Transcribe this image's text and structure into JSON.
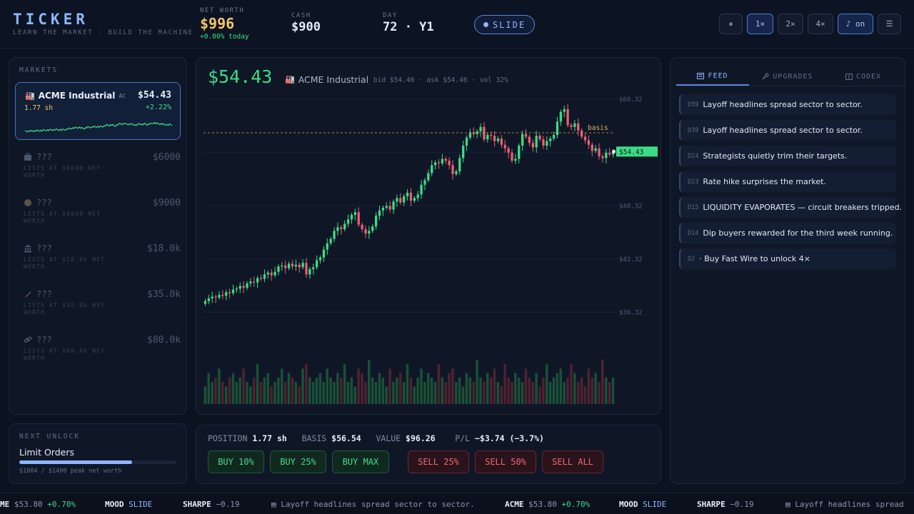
{
  "brand": {
    "title": "TICKER",
    "tagline": "LEARN THE MARKET · BUILD THE MACHINE"
  },
  "stats": {
    "net_worth": {
      "label": "NET WORTH",
      "value": "$996",
      "change": "+0.00% today"
    },
    "cash": {
      "label": "CASH",
      "value": "$900"
    },
    "day": {
      "label": "DAY",
      "value": "72 · Y1"
    }
  },
  "mood": {
    "label": "SLIDE"
  },
  "controls": {
    "pause": "⏸",
    "speed_1": "1×",
    "speed_2": "2×",
    "speed_4": "4×",
    "sound": "♪ on",
    "menu": "☰"
  },
  "markets": {
    "label": "MARKETS",
    "active": {
      "icon": "🏭",
      "name": "ACME Industrial",
      "ticker": "AC",
      "price": "$54.43",
      "shares": "1.77 sh",
      "change": "+2.22%"
    },
    "locked": [
      {
        "icon": "briefcase-icon",
        "name": "???",
        "price": "$6000",
        "desc": "LISTS AT $6000 NET WORTH"
      },
      {
        "icon": "coin-icon",
        "name": "???",
        "price": "$9000",
        "desc": "LISTS AT $9000 NET WORTH"
      },
      {
        "icon": "bank-icon",
        "name": "???",
        "price": "$18.0k",
        "desc": "LISTS AT $18.0k NET WORTH"
      },
      {
        "icon": "rocket-icon",
        "name": "???",
        "price": "$35.0k",
        "desc": "LISTS AT $35.0k NET WORTH"
      },
      {
        "icon": "link-icon",
        "name": "???",
        "price": "$80.0k",
        "desc": "LISTS AT $80.0k NET WORTH"
      }
    ]
  },
  "chart_header": {
    "price": "$54.43",
    "icon": "🏭",
    "name": "ACME Industrial",
    "meta": "bid $54.40 · ask $54.46 · vol 32%"
  },
  "chart_data": {
    "type": "candlestick",
    "y_ticks": [
      "$60.32",
      "$48.32",
      "$42.32",
      "$36.32"
    ],
    "basis_label": "basis",
    "basis_value": 56.54,
    "last_price_label": "$54.43",
    "last_price": 54.43,
    "closes": [
      37.6,
      37.9,
      38.1,
      38.0,
      38.3,
      38.2,
      38.6,
      38.5,
      38.9,
      39.0,
      39.3,
      39.1,
      39.6,
      39.8,
      39.7,
      40.2,
      40.1,
      40.6,
      40.8,
      40.5,
      40.9,
      41.5,
      41.6,
      41.3,
      41.8,
      41.5,
      41.7,
      41.4,
      41.9,
      40.6,
      41.2,
      41.4,
      42.2,
      42.5,
      43.4,
      44.1,
      44.6,
      45.5,
      45.9,
      45.7,
      46.3,
      46.8,
      47.3,
      47.6,
      46.2,
      45.7,
      45.2,
      45.5,
      46.0,
      47.2,
      47.8,
      48.1,
      48.3,
      47.9,
      48.8,
      49.2,
      48.7,
      49.4,
      49.8,
      48.9,
      49.2,
      49.6,
      50.7,
      51.2,
      52.0,
      52.9,
      53.2,
      53.1,
      53.6,
      53.4,
      52.9,
      51.9,
      52.2,
      53.7,
      55.1,
      56.0,
      56.6,
      56.4,
      56.7,
      57.2,
      55.8,
      56.3,
      56.2,
      55.6,
      55.9,
      55.2,
      54.8,
      54.3,
      53.4,
      53.6,
      55.1,
      56.4,
      56.1,
      55.4,
      54.9,
      56.2,
      55.8,
      55.1,
      55.6,
      55.9,
      56.3,
      57.8,
      58.9,
      59.2,
      57.4,
      57.2,
      57.6,
      56.8,
      56.1,
      55.7,
      55.2,
      54.5,
      54.8,
      53.9,
      53.7,
      54.3,
      54.1,
      54.43
    ],
    "volumes": [
      0.4,
      0.7,
      0.5,
      0.6,
      0.8,
      0.5,
      0.4,
      0.6,
      0.7,
      0.5,
      0.6,
      0.8,
      0.5,
      0.4,
      0.6,
      0.9,
      0.5,
      0.6,
      0.7,
      0.4,
      0.5,
      0.6,
      0.8,
      0.5,
      0.7,
      0.6,
      0.5,
      0.4,
      0.8,
      0.9,
      0.6,
      0.5,
      0.6,
      0.7,
      0.5,
      0.8,
      0.6,
      0.5,
      0.7,
      0.6,
      0.9,
      0.5,
      0.6,
      0.4,
      0.8,
      0.7,
      0.5,
      1.0,
      0.6,
      0.5,
      0.7,
      0.6,
      0.4,
      0.8,
      0.5,
      0.6,
      0.7,
      0.5,
      0.9,
      0.6,
      0.4,
      0.6,
      0.8,
      0.5,
      0.7,
      0.6,
      0.5,
      0.9,
      0.6,
      0.5,
      0.7,
      0.8,
      0.5,
      0.6,
      0.4,
      0.7,
      0.6,
      0.5,
      1.0,
      0.6,
      0.5,
      0.7,
      0.6,
      0.8,
      0.5,
      0.4,
      0.9,
      0.6,
      0.5,
      0.7,
      0.6,
      0.5,
      0.8,
      0.6,
      0.5,
      0.7,
      0.4,
      0.6,
      0.9,
      0.5,
      0.6,
      0.7,
      0.8,
      0.5,
      0.6,
      0.9,
      0.7,
      0.5,
      0.6,
      0.4,
      0.8,
      0.6,
      0.7,
      0.5,
      1.0,
      0.6,
      0.5,
      0.6
    ]
  },
  "position": {
    "pos_label": "POSITION",
    "pos_value": "1.77 sh",
    "basis_label": "BASIS",
    "basis_value": "$56.54",
    "value_label": "VALUE",
    "value_value": "$96.26",
    "pl_label": "P/L",
    "pl_value": "−$3.74 (−3.7%)",
    "buttons": {
      "buy10": "BUY 10%",
      "buy25": "BUY 25%",
      "buymax": "BUY MAX",
      "sell25": "SELL 25%",
      "sell50": "SELL 50%",
      "sellall": "SELL ALL"
    }
  },
  "unlock": {
    "label": "NEXT UNLOCK",
    "title": "Limit Orders",
    "progress": 0.72,
    "progress_text": "$1004 / $1400 peak net worth"
  },
  "tabs": {
    "feed": "FEED",
    "upgrades": "UPGRADES",
    "codex": "CODEX"
  },
  "feed": [
    {
      "day": "D59",
      "text": "Layoff headlines spread sector to sector."
    },
    {
      "day": "D39",
      "text": "Layoff headlines spread sector to sector."
    },
    {
      "day": "D24",
      "text": "Strategists quietly trim their targets."
    },
    {
      "day": "D23",
      "text": "Rate hike surprises the market."
    },
    {
      "day": "D15",
      "text": "LIQUIDITY EVAPORATES — circuit breakers tripped."
    },
    {
      "day": "D14",
      "text": "Dip buyers rewarded for the third week running."
    },
    {
      "day": "D2",
      "text": "· Buy Fast Wire to unlock 4×"
    }
  ],
  "tape": {
    "acme_tail": "ME",
    "acme_full": "ACME",
    "acme_price": "$53.80",
    "acme_change": "+0.70%",
    "mood_label": "MOOD",
    "mood_value": "SLIDE",
    "sharpe_label": "SHARPE",
    "sharpe_value": "−0.19",
    "headline": "Layoff headlines spread sector to sector.",
    "headline_cut": "Layoff headlines spread"
  }
}
